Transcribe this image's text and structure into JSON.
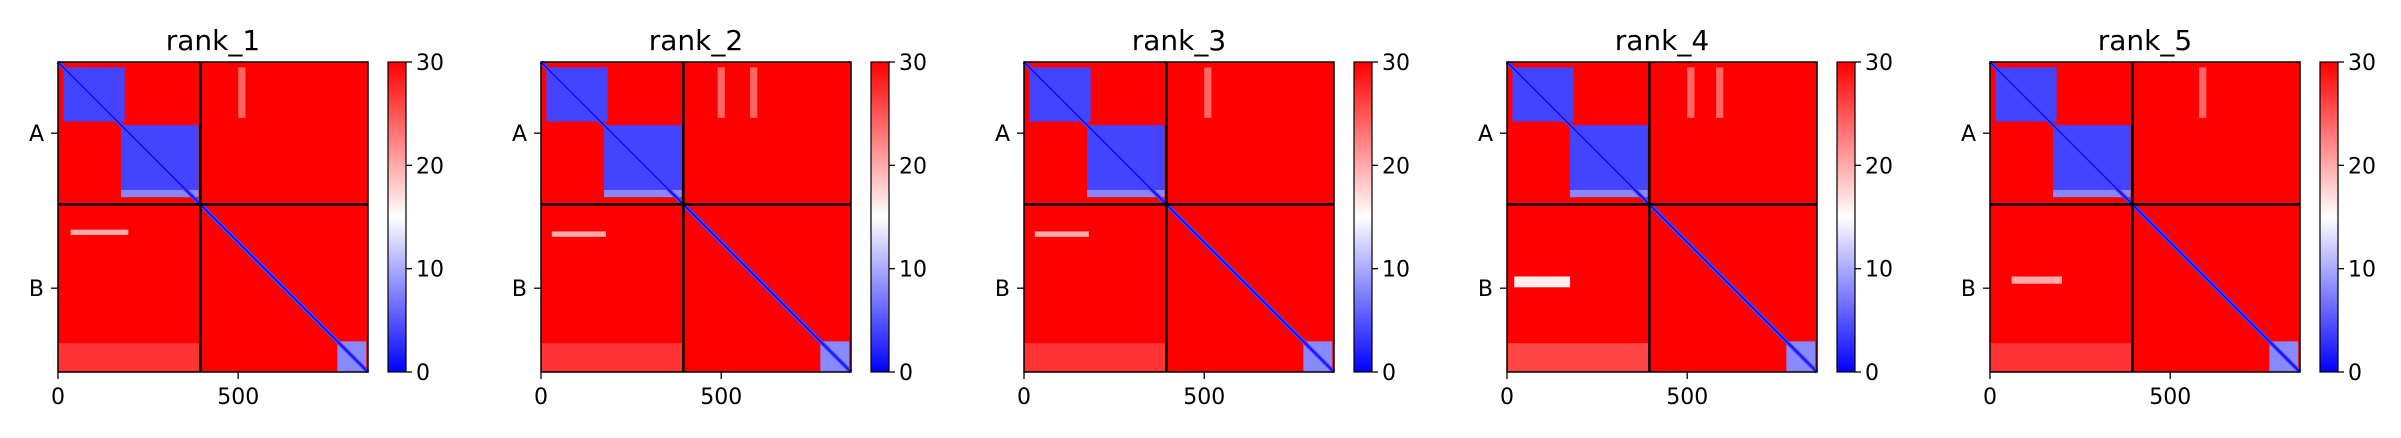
{
  "chart_data": [
    {
      "type": "heatmap",
      "title": "rank_1",
      "xlabel": "",
      "ylabel": "",
      "x_ticks": [
        0,
        500
      ],
      "xlim": [
        0,
        860
      ],
      "chain_boundary": 395,
      "y_tick_labels": [
        "A",
        "B"
      ],
      "colorbar": {
        "min": 0,
        "max": 30,
        "ticks": [
          0,
          10,
          20,
          30
        ],
        "colormap": "bwr"
      },
      "blocks": [
        {
          "x0": 0,
          "x1": 860,
          "y0": 0,
          "y1": 860,
          "value": 30
        },
        {
          "x0": 15,
          "x1": 185,
          "y0": 15,
          "y1": 165,
          "value": 4
        },
        {
          "x0": 175,
          "x1": 390,
          "y0": 175,
          "y1": 355,
          "value": 4
        },
        {
          "x0": 175,
          "x1": 390,
          "y0": 355,
          "y1": 375,
          "value": 8
        },
        {
          "x0": 500,
          "x1": 520,
          "y0": 15,
          "y1": 155,
          "value": 24
        },
        {
          "x0": 35,
          "x1": 195,
          "y0": 465,
          "y1": 480,
          "value": 20
        },
        {
          "x0": 0,
          "x1": 395,
          "y0": 780,
          "y1": 860,
          "value": 27
        },
        {
          "x0": 775,
          "x1": 855,
          "y0": 775,
          "y1": 860,
          "value": 8
        }
      ]
    },
    {
      "type": "heatmap",
      "title": "rank_2",
      "xlabel": "",
      "ylabel": "",
      "x_ticks": [
        0,
        500
      ],
      "xlim": [
        0,
        860
      ],
      "chain_boundary": 395,
      "y_tick_labels": [
        "A",
        "B"
      ],
      "colorbar": {
        "min": 0,
        "max": 30,
        "ticks": [
          0,
          10,
          20,
          30
        ],
        "colormap": "bwr"
      },
      "blocks": [
        {
          "x0": 0,
          "x1": 860,
          "y0": 0,
          "y1": 860,
          "value": 30
        },
        {
          "x0": 15,
          "x1": 185,
          "y0": 15,
          "y1": 165,
          "value": 4
        },
        {
          "x0": 175,
          "x1": 390,
          "y0": 175,
          "y1": 355,
          "value": 4
        },
        {
          "x0": 175,
          "x1": 390,
          "y0": 355,
          "y1": 375,
          "value": 8
        },
        {
          "x0": 490,
          "x1": 510,
          "y0": 15,
          "y1": 155,
          "value": 24
        },
        {
          "x0": 580,
          "x1": 600,
          "y0": 15,
          "y1": 155,
          "value": 24
        },
        {
          "x0": 30,
          "x1": 180,
          "y0": 470,
          "y1": 485,
          "value": 20
        },
        {
          "x0": 0,
          "x1": 395,
          "y0": 780,
          "y1": 860,
          "value": 27
        },
        {
          "x0": 775,
          "x1": 855,
          "y0": 775,
          "y1": 860,
          "value": 8
        }
      ]
    },
    {
      "type": "heatmap",
      "title": "rank_3",
      "xlabel": "",
      "ylabel": "",
      "x_ticks": [
        0,
        500
      ],
      "xlim": [
        0,
        860
      ],
      "chain_boundary": 395,
      "y_tick_labels": [
        "A",
        "B"
      ],
      "colorbar": {
        "min": 0,
        "max": 30,
        "ticks": [
          0,
          10,
          20,
          30
        ],
        "colormap": "bwr"
      },
      "blocks": [
        {
          "x0": 0,
          "x1": 860,
          "y0": 0,
          "y1": 860,
          "value": 30
        },
        {
          "x0": 15,
          "x1": 185,
          "y0": 15,
          "y1": 165,
          "value": 4
        },
        {
          "x0": 175,
          "x1": 390,
          "y0": 175,
          "y1": 355,
          "value": 4
        },
        {
          "x0": 175,
          "x1": 390,
          "y0": 355,
          "y1": 375,
          "value": 8
        },
        {
          "x0": 500,
          "x1": 520,
          "y0": 15,
          "y1": 155,
          "value": 24
        },
        {
          "x0": 30,
          "x1": 180,
          "y0": 470,
          "y1": 485,
          "value": 20
        },
        {
          "x0": 0,
          "x1": 395,
          "y0": 780,
          "y1": 860,
          "value": 27
        },
        {
          "x0": 775,
          "x1": 855,
          "y0": 775,
          "y1": 860,
          "value": 8
        }
      ]
    },
    {
      "type": "heatmap",
      "title": "rank_4",
      "xlabel": "",
      "ylabel": "",
      "x_ticks": [
        0,
        500
      ],
      "xlim": [
        0,
        860
      ],
      "chain_boundary": 395,
      "y_tick_labels": [
        "A",
        "B"
      ],
      "colorbar": {
        "min": 0,
        "max": 30,
        "ticks": [
          0,
          10,
          20,
          30
        ],
        "colormap": "bwr"
      },
      "blocks": [
        {
          "x0": 0,
          "x1": 860,
          "y0": 0,
          "y1": 860,
          "value": 30
        },
        {
          "x0": 15,
          "x1": 185,
          "y0": 15,
          "y1": 165,
          "value": 4
        },
        {
          "x0": 175,
          "x1": 390,
          "y0": 175,
          "y1": 355,
          "value": 4
        },
        {
          "x0": 175,
          "x1": 390,
          "y0": 355,
          "y1": 375,
          "value": 8
        },
        {
          "x0": 500,
          "x1": 520,
          "y0": 15,
          "y1": 155,
          "value": 24
        },
        {
          "x0": 580,
          "x1": 600,
          "y0": 15,
          "y1": 155,
          "value": 24
        },
        {
          "x0": 20,
          "x1": 175,
          "y0": 595,
          "y1": 625,
          "value": 16
        },
        {
          "x0": 0,
          "x1": 395,
          "y0": 780,
          "y1": 860,
          "value": 26
        },
        {
          "x0": 775,
          "x1": 855,
          "y0": 775,
          "y1": 860,
          "value": 8
        }
      ]
    },
    {
      "type": "heatmap",
      "title": "rank_5",
      "xlabel": "",
      "ylabel": "",
      "x_ticks": [
        0,
        500
      ],
      "xlim": [
        0,
        860
      ],
      "chain_boundary": 395,
      "y_tick_labels": [
        "A",
        "B"
      ],
      "colorbar": {
        "min": 0,
        "max": 30,
        "ticks": [
          0,
          10,
          20,
          30
        ],
        "colormap": "bwr"
      },
      "blocks": [
        {
          "x0": 0,
          "x1": 860,
          "y0": 0,
          "y1": 860,
          "value": 30
        },
        {
          "x0": 15,
          "x1": 185,
          "y0": 15,
          "y1": 165,
          "value": 4
        },
        {
          "x0": 175,
          "x1": 390,
          "y0": 175,
          "y1": 355,
          "value": 4
        },
        {
          "x0": 175,
          "x1": 390,
          "y0": 355,
          "y1": 375,
          "value": 8
        },
        {
          "x0": 580,
          "x1": 600,
          "y0": 15,
          "y1": 155,
          "value": 24
        },
        {
          "x0": 60,
          "x1": 200,
          "y0": 595,
          "y1": 615,
          "value": 20
        },
        {
          "x0": 0,
          "x1": 395,
          "y0": 780,
          "y1": 860,
          "value": 27
        },
        {
          "x0": 775,
          "x1": 855,
          "y0": 775,
          "y1": 860,
          "value": 8
        }
      ]
    }
  ]
}
